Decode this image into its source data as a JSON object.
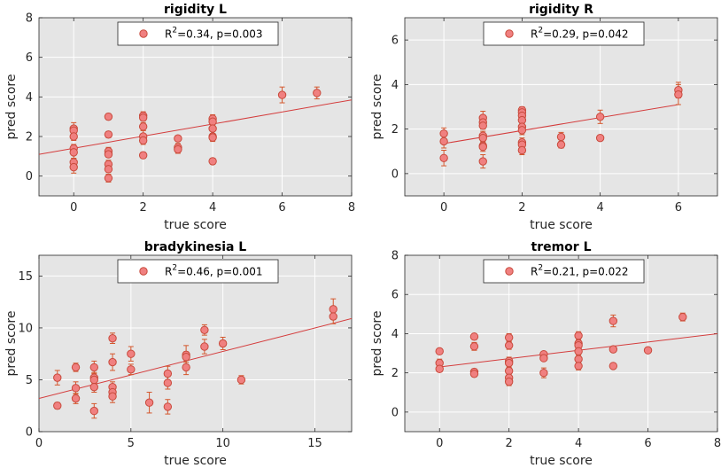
{
  "colors": {
    "axes_background": "#e5e5e5",
    "grid": "#ffffff",
    "axis_line": "#262626",
    "marker_fill": "#f08080",
    "marker_edge": "#c84a3c",
    "errorbar": "#d4572c",
    "fit_line": "#d43c3c"
  },
  "chart_data": [
    {
      "type": "scatter",
      "title": "rigidity L",
      "xlabel": "true score",
      "ylabel": "pred score",
      "xlim": [
        -1,
        8
      ],
      "ylim": [
        -1,
        8
      ],
      "xticks": [
        0,
        2,
        4,
        6,
        8
      ],
      "yticks": [
        0,
        2,
        4,
        6,
        8
      ],
      "grid": true,
      "legend": {
        "label_prefix": "R",
        "sup": "2",
        "label_rest": "=0.34, p=0.003",
        "location": "top-center"
      },
      "fit": {
        "x": [
          -1,
          8
        ],
        "y": [
          1.1,
          3.85
        ]
      },
      "points": [
        {
          "x": 0,
          "y": 2.4,
          "e": 0.3
        },
        {
          "x": 0,
          "y": 2.3,
          "e": 0.2
        },
        {
          "x": 0,
          "y": 2.0,
          "e": 0.2
        },
        {
          "x": 0,
          "y": 1.4,
          "e": 0.2
        },
        {
          "x": 0,
          "y": 1.2,
          "e": 0.3
        },
        {
          "x": 0,
          "y": 0.7,
          "e": 0.2
        },
        {
          "x": 0,
          "y": 0.45,
          "e": 0.3
        },
        {
          "x": 1,
          "y": 3.0,
          "e": 0.15
        },
        {
          "x": 1,
          "y": 2.1,
          "e": 0.15
        },
        {
          "x": 1,
          "y": 1.25,
          "e": 0.2
        },
        {
          "x": 1,
          "y": 1.1,
          "e": 0.15
        },
        {
          "x": 1,
          "y": 0.6,
          "e": 0.2
        },
        {
          "x": 1,
          "y": 0.35,
          "e": 0.15
        },
        {
          "x": 1,
          "y": -0.1,
          "e": 0.2
        },
        {
          "x": 2,
          "y": 3.05,
          "e": 0.2
        },
        {
          "x": 2,
          "y": 2.95,
          "e": 0.15
        },
        {
          "x": 2,
          "y": 2.5,
          "e": 0.2
        },
        {
          "x": 2,
          "y": 2.0,
          "e": 0.3
        },
        {
          "x": 2,
          "y": 1.8,
          "e": 0.2
        },
        {
          "x": 2,
          "y": 1.05,
          "e": 0.15
        },
        {
          "x": 3,
          "y": 1.9,
          "e": 0.1
        },
        {
          "x": 3,
          "y": 1.45,
          "e": 0.2
        },
        {
          "x": 3,
          "y": 1.35,
          "e": 0.2
        },
        {
          "x": 4,
          "y": 2.9,
          "e": 0.2
        },
        {
          "x": 4,
          "y": 2.75,
          "e": 0.2
        },
        {
          "x": 4,
          "y": 2.4,
          "e": 0.25
        },
        {
          "x": 4,
          "y": 2.0,
          "e": 0.15
        },
        {
          "x": 4,
          "y": 1.95,
          "e": 0.2
        },
        {
          "x": 4,
          "y": 0.75,
          "e": 0.15
        },
        {
          "x": 6,
          "y": 4.1,
          "e": 0.4
        },
        {
          "x": 7,
          "y": 4.2,
          "e": 0.3
        }
      ]
    },
    {
      "type": "scatter",
      "title": "rigidity R",
      "xlabel": "true score",
      "ylabel": "pred score",
      "xlim": [
        -1,
        7
      ],
      "ylim": [
        -1,
        7
      ],
      "xticks": [
        0,
        2,
        4,
        6
      ],
      "yticks": [
        0,
        2,
        4,
        6
      ],
      "grid": true,
      "legend": {
        "label_prefix": "R",
        "sup": "2",
        "label_rest": "=0.29, p=0.042",
        "location": "top-center"
      },
      "fit": {
        "x": [
          0,
          6
        ],
        "y": [
          1.35,
          3.1
        ]
      },
      "points": [
        {
          "x": 0,
          "y": 1.8,
          "e": 0.25
        },
        {
          "x": 0,
          "y": 1.45,
          "e": 0.3
        },
        {
          "x": 0,
          "y": 0.7,
          "e": 0.35
        },
        {
          "x": 1,
          "y": 2.5,
          "e": 0.3
        },
        {
          "x": 1,
          "y": 2.3,
          "e": 0.2
        },
        {
          "x": 1,
          "y": 2.15,
          "e": 0.15
        },
        {
          "x": 1,
          "y": 1.7,
          "e": 0.2
        },
        {
          "x": 1,
          "y": 1.6,
          "e": 0.15
        },
        {
          "x": 1,
          "y": 1.25,
          "e": 0.15
        },
        {
          "x": 1,
          "y": 1.2,
          "e": 0.2
        },
        {
          "x": 1,
          "y": 0.55,
          "e": 0.3
        },
        {
          "x": 2,
          "y": 2.85,
          "e": 0.15
        },
        {
          "x": 2,
          "y": 2.75,
          "e": 0.15
        },
        {
          "x": 2,
          "y": 2.6,
          "e": 0.2
        },
        {
          "x": 2,
          "y": 2.4,
          "e": 0.15
        },
        {
          "x": 2,
          "y": 2.1,
          "e": 0.2
        },
        {
          "x": 2,
          "y": 1.95,
          "e": 0.2
        },
        {
          "x": 2,
          "y": 1.4,
          "e": 0.2
        },
        {
          "x": 2,
          "y": 1.3,
          "e": 0.2
        },
        {
          "x": 2,
          "y": 1.05,
          "e": 0.2
        },
        {
          "x": 3,
          "y": 1.65,
          "e": 0.2
        },
        {
          "x": 3,
          "y": 1.3,
          "e": 0.15
        },
        {
          "x": 4,
          "y": 2.55,
          "e": 0.3
        },
        {
          "x": 4,
          "y": 1.6,
          "e": 0.1
        },
        {
          "x": 6,
          "y": 3.75,
          "e": 0.35
        },
        {
          "x": 6,
          "y": 3.55,
          "e": 0.45
        }
      ]
    },
    {
      "type": "scatter",
      "title": "bradykinesia L",
      "xlabel": "true score",
      "ylabel": "pred score",
      "xlim": [
        0,
        17
      ],
      "ylim": [
        0,
        17
      ],
      "xticks": [
        0,
        5,
        10,
        15
      ],
      "yticks": [
        0,
        5,
        10,
        15
      ],
      "grid": true,
      "legend": {
        "label_prefix": "R",
        "sup": "2",
        "label_rest": "=0.46, p=0.001",
        "location": "top-center"
      },
      "fit": {
        "x": [
          0,
          17
        ],
        "y": [
          3.2,
          10.9
        ]
      },
      "points": [
        {
          "x": 1,
          "y": 5.2,
          "e": 0.7
        },
        {
          "x": 1,
          "y": 2.5,
          "e": 0.3
        },
        {
          "x": 2,
          "y": 6.2,
          "e": 0.4
        },
        {
          "x": 2,
          "y": 4.2,
          "e": 0.6
        },
        {
          "x": 2,
          "y": 3.2,
          "e": 0.5
        },
        {
          "x": 3,
          "y": 6.2,
          "e": 0.6
        },
        {
          "x": 3,
          "y": 5.2,
          "e": 0.5
        },
        {
          "x": 3,
          "y": 5.0,
          "e": 0.4
        },
        {
          "x": 3,
          "y": 4.3,
          "e": 0.5
        },
        {
          "x": 3,
          "y": 2.0,
          "e": 0.7
        },
        {
          "x": 4,
          "y": 9.0,
          "e": 0.5
        },
        {
          "x": 4,
          "y": 6.7,
          "e": 0.8
        },
        {
          "x": 4,
          "y": 4.3,
          "e": 0.5
        },
        {
          "x": 4,
          "y": 3.8,
          "e": 0.6
        },
        {
          "x": 4,
          "y": 3.4,
          "e": 0.6
        },
        {
          "x": 5,
          "y": 7.5,
          "e": 0.7
        },
        {
          "x": 5,
          "y": 6.0,
          "e": 0.5
        },
        {
          "x": 6,
          "y": 2.8,
          "e": 1.0
        },
        {
          "x": 7,
          "y": 5.6,
          "e": 0.7
        },
        {
          "x": 7,
          "y": 4.7,
          "e": 0.6
        },
        {
          "x": 7,
          "y": 2.4,
          "e": 0.7
        },
        {
          "x": 8,
          "y": 7.4,
          "e": 0.9
        },
        {
          "x": 8,
          "y": 7.2,
          "e": 0.5
        },
        {
          "x": 8,
          "y": 6.2,
          "e": 0.7
        },
        {
          "x": 9,
          "y": 9.8,
          "e": 0.5
        },
        {
          "x": 9,
          "y": 8.2,
          "e": 0.7
        },
        {
          "x": 10,
          "y": 8.5,
          "e": 0.6
        },
        {
          "x": 11,
          "y": 5.0,
          "e": 0.4
        },
        {
          "x": 16,
          "y": 11.8,
          "e": 1.0
        },
        {
          "x": 16,
          "y": 11.1,
          "e": 0.7
        }
      ]
    },
    {
      "type": "scatter",
      "title": "tremor L",
      "xlabel": "true score",
      "ylabel": "pred score",
      "xlim": [
        -1,
        8
      ],
      "ylim": [
        -1,
        8
      ],
      "xticks": [
        0,
        2,
        4,
        6,
        8
      ],
      "yticks": [
        0,
        2,
        4,
        6,
        8
      ],
      "grid": true,
      "legend": {
        "label_prefix": "R",
        "sup": "2",
        "label_rest": "=0.21, p=0.022",
        "location": "top-center"
      },
      "fit": {
        "x": [
          0,
          8
        ],
        "y": [
          2.3,
          4.0
        ]
      },
      "points": [
        {
          "x": 0,
          "y": 3.1,
          "e": 0.1
        },
        {
          "x": 0,
          "y": 2.5,
          "e": 0.2
        },
        {
          "x": 0,
          "y": 2.2,
          "e": 0.15
        },
        {
          "x": 1,
          "y": 3.85,
          "e": 0.1
        },
        {
          "x": 1,
          "y": 3.35,
          "e": 0.2
        },
        {
          "x": 1,
          "y": 2.05,
          "e": 0.15
        },
        {
          "x": 1,
          "y": 1.95,
          "e": 0.1
        },
        {
          "x": 2,
          "y": 3.8,
          "e": 0.2
        },
        {
          "x": 2,
          "y": 3.4,
          "e": 0.2
        },
        {
          "x": 2,
          "y": 2.6,
          "e": 0.2
        },
        {
          "x": 2,
          "y": 2.5,
          "e": 0.2
        },
        {
          "x": 2,
          "y": 2.1,
          "e": 0.15
        },
        {
          "x": 2,
          "y": 1.75,
          "e": 0.2
        },
        {
          "x": 2,
          "y": 1.55,
          "e": 0.2
        },
        {
          "x": 3,
          "y": 2.95,
          "e": 0.1
        },
        {
          "x": 3,
          "y": 2.75,
          "e": 0.1
        },
        {
          "x": 3,
          "y": 2.0,
          "e": 0.25
        },
        {
          "x": 4,
          "y": 3.9,
          "e": 0.2
        },
        {
          "x": 4,
          "y": 3.5,
          "e": 0.15
        },
        {
          "x": 4,
          "y": 3.4,
          "e": 0.15
        },
        {
          "x": 4,
          "y": 3.1,
          "e": 0.15
        },
        {
          "x": 4,
          "y": 2.7,
          "e": 0.2
        },
        {
          "x": 4,
          "y": 2.35,
          "e": 0.2
        },
        {
          "x": 5,
          "y": 4.65,
          "e": 0.3
        },
        {
          "x": 5,
          "y": 3.2,
          "e": 0.1
        },
        {
          "x": 5,
          "y": 2.35,
          "e": 0.1
        },
        {
          "x": 6,
          "y": 3.15,
          "e": 0.1
        },
        {
          "x": 7,
          "y": 4.85,
          "e": 0.2
        }
      ]
    }
  ]
}
